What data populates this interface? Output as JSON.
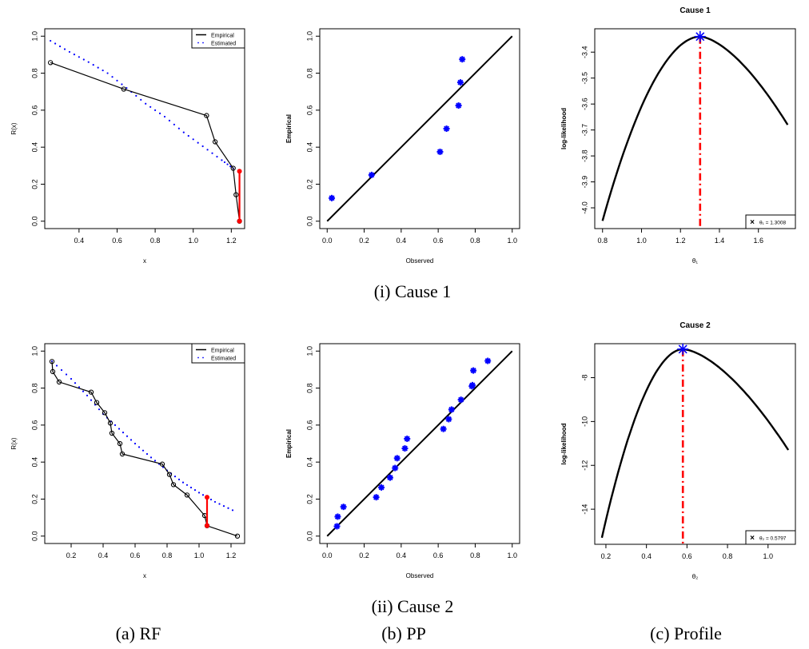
{
  "captions": {
    "row1": "(i) Cause 1",
    "row2": "(ii) Cause 2",
    "col_a": "(a) RF",
    "col_b": "(b) PP",
    "col_c": "(c) Profile"
  },
  "colors": {
    "empirical": "#000000",
    "estimated": "#0000ff",
    "highlight": "#ff0000",
    "points": "#0000ff"
  },
  "chart_data": [
    {
      "id": "rf1",
      "type": "line",
      "title": "",
      "xlabel": "x",
      "ylabel": "R(x)",
      "xlim": [
        0.22,
        1.27
      ],
      "ylim": [
        -0.04,
        1.04
      ],
      "xticks": [
        0.4,
        0.6,
        0.8,
        1.0,
        1.2
      ],
      "xtick_labels": [
        "0.4",
        "0.6",
        "0.8",
        "1.0",
        "1.2"
      ],
      "yticks": [
        0.0,
        0.2,
        0.4,
        0.6,
        0.8,
        1.0
      ],
      "ytick_labels": [
        "0.0",
        "0.2",
        "0.4",
        "0.6",
        "0.8",
        "1.0"
      ],
      "legend": {
        "position": "top-right",
        "entries": [
          "Empirical",
          "Estimated"
        ]
      },
      "series": [
        {
          "name": "Empirical",
          "style": "solid-with-circles",
          "x": [
            0.25,
            0.635,
            1.07,
            1.115,
            1.21,
            1.225,
            1.243
          ],
          "y": [
            0.857,
            0.714,
            0.571,
            0.429,
            0.286,
            0.143,
            0.0
          ]
        },
        {
          "name": "Estimated",
          "style": "dotted",
          "x": [
            0.25,
            0.35,
            0.45,
            0.55,
            0.65,
            0.75,
            0.85,
            0.95,
            1.05,
            1.15,
            1.21
          ],
          "y": [
            0.975,
            0.915,
            0.86,
            0.8,
            0.72,
            0.635,
            0.565,
            0.48,
            0.405,
            0.33,
            0.285
          ]
        }
      ],
      "highlight_segment": {
        "x": 1.243,
        "y": [
          0.0,
          0.27
        ]
      }
    },
    {
      "id": "pp1",
      "type": "scatter",
      "title": "",
      "xlabel": "Observed",
      "ylabel": "Empirical",
      "xlim": [
        -0.04,
        1.04
      ],
      "ylim": [
        -0.04,
        1.04
      ],
      "xticks": [
        0.0,
        0.2,
        0.4,
        0.6,
        0.8,
        1.0
      ],
      "xtick_labels": [
        "0.0",
        "0.2",
        "0.4",
        "0.6",
        "0.8",
        "1.0"
      ],
      "yticks": [
        0.0,
        0.2,
        0.4,
        0.6,
        0.8,
        1.0
      ],
      "ytick_labels": [
        "0.0",
        "0.2",
        "0.4",
        "0.6",
        "0.8",
        "1.0"
      ],
      "reference_line": {
        "x": [
          0,
          1
        ],
        "y": [
          0,
          1
        ]
      },
      "points": {
        "x": [
          0.025,
          0.24,
          0.61,
          0.645,
          0.71,
          0.72,
          0.73
        ],
        "y": [
          0.125,
          0.25,
          0.375,
          0.5,
          0.625,
          0.75,
          0.875
        ]
      }
    },
    {
      "id": "prof1",
      "type": "line",
      "title": "Cause 1",
      "xlabel": "θ₁",
      "ylabel": "log-likelihood",
      "xlim": [
        0.76,
        1.79
      ],
      "ylim": [
        -4.08,
        -3.31
      ],
      "xticks": [
        0.8,
        1.0,
        1.2,
        1.4,
        1.6
      ],
      "xtick_labels": [
        "0.8",
        "1.0",
        "1.2",
        "1.4",
        "1.6"
      ],
      "yticks": [
        -4.0,
        -3.9,
        -3.8,
        -3.7,
        -3.6,
        -3.5,
        -3.4
      ],
      "ytick_labels": [
        "-4.0",
        "-3.9",
        "-3.8",
        "-3.7",
        "-3.6",
        "-3.5",
        "-3.4"
      ],
      "curve": {
        "x_start": 0.8,
        "x_end": 1.75,
        "peak_x": 1.3008,
        "peak_y": -3.34,
        "y_start": -4.05,
        "y_end": -3.68
      },
      "mle_marker": {
        "x": 1.3008,
        "y": -3.34
      },
      "legend": {
        "position": "bottom-right",
        "entries": [
          "θ₁ = 1.3008"
        ]
      }
    },
    {
      "id": "rf2",
      "type": "line",
      "title": "",
      "xlabel": "x",
      "ylabel": "R(x)",
      "xlim": [
        0.035,
        1.285
      ],
      "ylim": [
        -0.04,
        1.04
      ],
      "xticks": [
        0.2,
        0.4,
        0.6,
        0.8,
        1.0,
        1.2
      ],
      "xtick_labels": [
        "0.2",
        "0.4",
        "0.6",
        "0.8",
        "1.0",
        "1.2"
      ],
      "yticks": [
        0.0,
        0.2,
        0.4,
        0.6,
        0.8,
        1.0
      ],
      "ytick_labels": [
        "0.0",
        "0.2",
        "0.4",
        "0.6",
        "0.8",
        "1.0"
      ],
      "legend": {
        "position": "top-right",
        "entries": [
          "Empirical",
          "Estimated"
        ]
      },
      "series": [
        {
          "name": "Empirical",
          "style": "solid-with-circles",
          "x": [
            0.08,
            0.085,
            0.125,
            0.325,
            0.36,
            0.41,
            0.445,
            0.455,
            0.505,
            0.52,
            0.77,
            0.815,
            0.84,
            0.925,
            1.035,
            1.05,
            1.24
          ],
          "y": [
            0.944,
            0.889,
            0.833,
            0.778,
            0.722,
            0.667,
            0.611,
            0.556,
            0.5,
            0.444,
            0.389,
            0.333,
            0.278,
            0.222,
            0.111,
            0.056,
            0.0
          ]
        },
        {
          "name": "Estimated",
          "style": "dotted",
          "x": [
            0.08,
            0.2,
            0.3,
            0.4,
            0.5,
            0.6,
            0.7,
            0.8,
            0.9,
            1.0,
            1.1,
            1.21
          ],
          "y": [
            0.945,
            0.85,
            0.76,
            0.66,
            0.58,
            0.5,
            0.425,
            0.355,
            0.29,
            0.235,
            0.185,
            0.14
          ]
        }
      ],
      "highlight_segment": {
        "x": 1.05,
        "y": [
          0.056,
          0.21
        ]
      }
    },
    {
      "id": "pp2",
      "type": "scatter",
      "title": "",
      "xlabel": "Observed",
      "ylabel": "Empirical",
      "xlim": [
        -0.04,
        1.04
      ],
      "ylim": [
        -0.04,
        1.04
      ],
      "xticks": [
        0.0,
        0.2,
        0.4,
        0.6,
        0.8,
        1.0
      ],
      "xtick_labels": [
        "0.0",
        "0.2",
        "0.4",
        "0.6",
        "0.8",
        "1.0"
      ],
      "yticks": [
        0.0,
        0.2,
        0.4,
        0.6,
        0.8,
        1.0
      ],
      "ytick_labels": [
        "0.0",
        "0.2",
        "0.4",
        "0.6",
        "0.8",
        "1.0"
      ],
      "reference_line": {
        "x": [
          0,
          1
        ],
        "y": [
          0,
          1
        ]
      },
      "points": {
        "x": [
          0.053,
          0.057,
          0.088,
          0.265,
          0.293,
          0.34,
          0.367,
          0.378,
          0.42,
          0.432,
          0.628,
          0.657,
          0.672,
          0.723,
          0.782,
          0.785,
          0.79,
          0.868
        ],
        "y": [
          0.053,
          0.105,
          0.158,
          0.21,
          0.263,
          0.316,
          0.368,
          0.421,
          0.474,
          0.526,
          0.579,
          0.632,
          0.684,
          0.737,
          0.81,
          0.816,
          0.895,
          0.947
        ]
      }
    },
    {
      "id": "prof2",
      "type": "line",
      "title": "Cause 2",
      "xlabel": "θ₂",
      "ylabel": "log-likelihood",
      "xlim": [
        0.145,
        1.135
      ],
      "ylim": [
        -15.6,
        -6.45
      ],
      "xticks": [
        0.2,
        0.4,
        0.6,
        0.8,
        1.0
      ],
      "xtick_labels": [
        "0.2",
        "0.4",
        "0.6",
        "0.8",
        "1.0"
      ],
      "yticks": [
        -14,
        -12,
        -10,
        -8
      ],
      "ytick_labels": [
        "-14",
        "-12",
        "-10",
        "-8"
      ],
      "curve": {
        "x_start": 0.18,
        "x_end": 1.1,
        "peak_x": 0.5797,
        "peak_y": -6.7,
        "y_start": -15.3,
        "y_end": -11.3
      },
      "mle_marker": {
        "x": 0.5797,
        "y": -6.7
      },
      "legend": {
        "position": "bottom-right",
        "entries": [
          "θ₂ = 0.5797"
        ]
      }
    }
  ]
}
